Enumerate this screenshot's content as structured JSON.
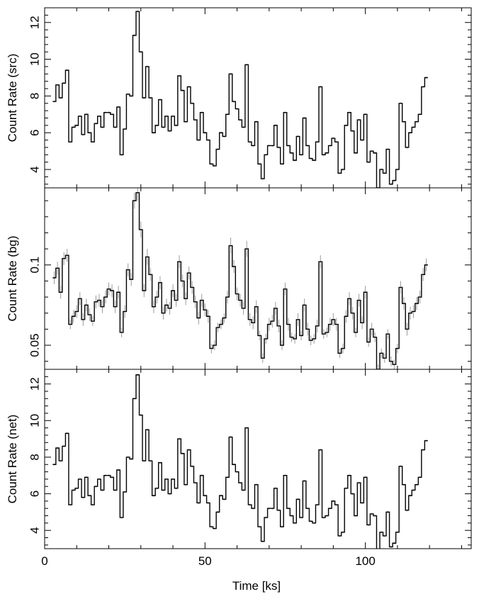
{
  "chart_data": {
    "type": "line",
    "style": "step",
    "grid": false,
    "bin_width_ks": 1.0,
    "x_start_ks": 2.5,
    "xlabel": "Time [ks]",
    "xlim": [
      0,
      133
    ],
    "xticks": [
      0,
      50,
      100
    ],
    "panels": [
      {
        "id": "src",
        "ylabel": "Count Rate (src)",
        "ylim": [
          3.0,
          12.8
        ],
        "yticks": [
          4,
          6,
          8,
          10,
          12
        ],
        "values": [
          7.7,
          8.6,
          7.9,
          8.7,
          9.4,
          5.5,
          6.3,
          6.4,
          6.9,
          5.9,
          7.0,
          6.0,
          5.5,
          6.5,
          6.9,
          6.3,
          7.1,
          7.1,
          7.0,
          6.3,
          7.4,
          4.8,
          6.2,
          8.1,
          8.0,
          11.3,
          12.6,
          10.4,
          7.9,
          9.6,
          7.9,
          6.0,
          6.4,
          7.8,
          6.3,
          6.9,
          6.1,
          6.9,
          6.4,
          9.1,
          8.3,
          6.6,
          8.5,
          7.6,
          6.7,
          5.6,
          7.1,
          6.0,
          5.6,
          4.3,
          4.2,
          5.1,
          6.0,
          5.8,
          7.0,
          9.2,
          7.7,
          7.3,
          6.7,
          6.3,
          9.7,
          5.5,
          5.3,
          6.6,
          4.3,
          3.5,
          4.8,
          5.3,
          5.3,
          6.4,
          5.2,
          4.3,
          7.1,
          5.3,
          4.9,
          4.5,
          5.8,
          4.8,
          6.8,
          5.3,
          4.6,
          4.5,
          5.5,
          8.5,
          4.8,
          4.9,
          5.3,
          5.7,
          5.5,
          3.8,
          4.0,
          6.4,
          7.1,
          6.1,
          4.9,
          6.7,
          5.6,
          7.0,
          4.4,
          5.0,
          4.9,
          3.0,
          4.0,
          3.8,
          5.1,
          3.2,
          3.4,
          4.0,
          7.6,
          6.6,
          5.2,
          6.0,
          6.3,
          6.6,
          7.0,
          8.5,
          9.0
        ]
      },
      {
        "id": "bg",
        "ylabel": "Count Rate (bg)",
        "ylim": [
          0.035,
          0.148
        ],
        "yticks": [
          0.05,
          0.1
        ],
        "values": [
          0.092,
          0.098,
          0.083,
          0.104,
          0.106,
          0.063,
          0.068,
          0.071,
          0.079,
          0.066,
          0.075,
          0.069,
          0.065,
          0.077,
          0.078,
          0.074,
          0.08,
          0.085,
          0.084,
          0.074,
          0.083,
          0.058,
          0.071,
          0.097,
          0.091,
          0.14,
          0.145,
          0.122,
          0.084,
          0.105,
          0.094,
          0.074,
          0.08,
          0.089,
          0.07,
          0.075,
          0.073,
          0.084,
          0.078,
          0.102,
          0.09,
          0.079,
          0.095,
          0.086,
          0.077,
          0.067,
          0.078,
          0.072,
          0.068,
          0.048,
          0.05,
          0.061,
          0.063,
          0.067,
          0.08,
          0.112,
          0.099,
          0.082,
          0.078,
          0.073,
          0.11,
          0.066,
          0.064,
          0.074,
          0.056,
          0.042,
          0.054,
          0.063,
          0.065,
          0.073,
          0.062,
          0.05,
          0.085,
          0.063,
          0.055,
          0.054,
          0.066,
          0.056,
          0.075,
          0.06,
          0.053,
          0.054,
          0.062,
          0.102,
          0.057,
          0.058,
          0.063,
          0.066,
          0.063,
          0.045,
          0.048,
          0.068,
          0.079,
          0.07,
          0.058,
          0.078,
          0.064,
          0.083,
          0.052,
          0.06,
          0.055,
          0.035,
          0.045,
          0.042,
          0.057,
          0.04,
          0.038,
          0.048,
          0.086,
          0.076,
          0.06,
          0.07,
          0.071,
          0.076,
          0.08,
          0.094,
          0.1
        ],
        "errors": [
          0.004,
          0.004,
          0.004,
          0.004,
          0.004,
          0.003,
          0.004,
          0.004,
          0.004,
          0.004,
          0.004,
          0.004,
          0.003,
          0.004,
          0.004,
          0.004,
          0.004,
          0.004,
          0.004,
          0.004,
          0.004,
          0.003,
          0.004,
          0.004,
          0.004,
          0.005,
          0.005,
          0.005,
          0.004,
          0.005,
          0.004,
          0.004,
          0.004,
          0.004,
          0.004,
          0.004,
          0.004,
          0.004,
          0.004,
          0.004,
          0.004,
          0.004,
          0.004,
          0.004,
          0.004,
          0.004,
          0.004,
          0.004,
          0.004,
          0.003,
          0.003,
          0.003,
          0.003,
          0.003,
          0.004,
          0.005,
          0.004,
          0.004,
          0.004,
          0.004,
          0.005,
          0.004,
          0.004,
          0.004,
          0.003,
          0.003,
          0.003,
          0.004,
          0.004,
          0.004,
          0.004,
          0.003,
          0.004,
          0.004,
          0.003,
          0.003,
          0.004,
          0.003,
          0.004,
          0.004,
          0.003,
          0.003,
          0.004,
          0.004,
          0.003,
          0.003,
          0.004,
          0.004,
          0.004,
          0.003,
          0.003,
          0.004,
          0.004,
          0.004,
          0.003,
          0.004,
          0.004,
          0.004,
          0.003,
          0.004,
          0.003,
          0.003,
          0.003,
          0.003,
          0.003,
          0.003,
          0.003,
          0.003,
          0.004,
          0.004,
          0.004,
          0.004,
          0.004,
          0.004,
          0.004,
          0.004,
          0.004
        ]
      },
      {
        "id": "net",
        "ylabel": "Count Rate (net)",
        "ylim": [
          3.0,
          12.8
        ],
        "yticks": [
          4,
          6,
          8,
          10,
          12
        ],
        "values": [
          7.6,
          8.5,
          7.8,
          8.6,
          9.3,
          5.4,
          6.2,
          6.3,
          6.8,
          5.8,
          6.9,
          5.9,
          5.4,
          6.4,
          6.8,
          6.2,
          7.0,
          7.0,
          6.9,
          6.2,
          7.3,
          4.7,
          6.1,
          8.0,
          7.9,
          11.2,
          12.5,
          10.3,
          7.8,
          9.5,
          7.8,
          5.9,
          6.3,
          7.7,
          6.2,
          6.8,
          6.0,
          6.8,
          6.3,
          9.0,
          8.2,
          6.5,
          8.4,
          7.5,
          6.6,
          5.5,
          7.0,
          5.9,
          5.5,
          4.2,
          4.1,
          5.0,
          5.9,
          5.7,
          6.9,
          9.1,
          7.6,
          7.2,
          6.6,
          6.2,
          9.6,
          5.4,
          5.2,
          6.5,
          4.2,
          3.4,
          4.7,
          5.2,
          5.2,
          6.3,
          5.1,
          4.2,
          7.0,
          5.2,
          4.8,
          4.4,
          5.7,
          4.7,
          6.7,
          5.2,
          4.5,
          4.4,
          5.4,
          8.4,
          4.7,
          4.8,
          5.2,
          5.6,
          5.4,
          3.7,
          3.9,
          6.3,
          7.0,
          6.0,
          4.8,
          6.6,
          5.5,
          6.9,
          4.3,
          4.9,
          4.8,
          2.9,
          3.9,
          3.7,
          5.0,
          3.1,
          3.3,
          3.9,
          7.5,
          6.5,
          5.1,
          5.9,
          6.2,
          6.5,
          6.9,
          8.4,
          8.9
        ]
      }
    ]
  }
}
